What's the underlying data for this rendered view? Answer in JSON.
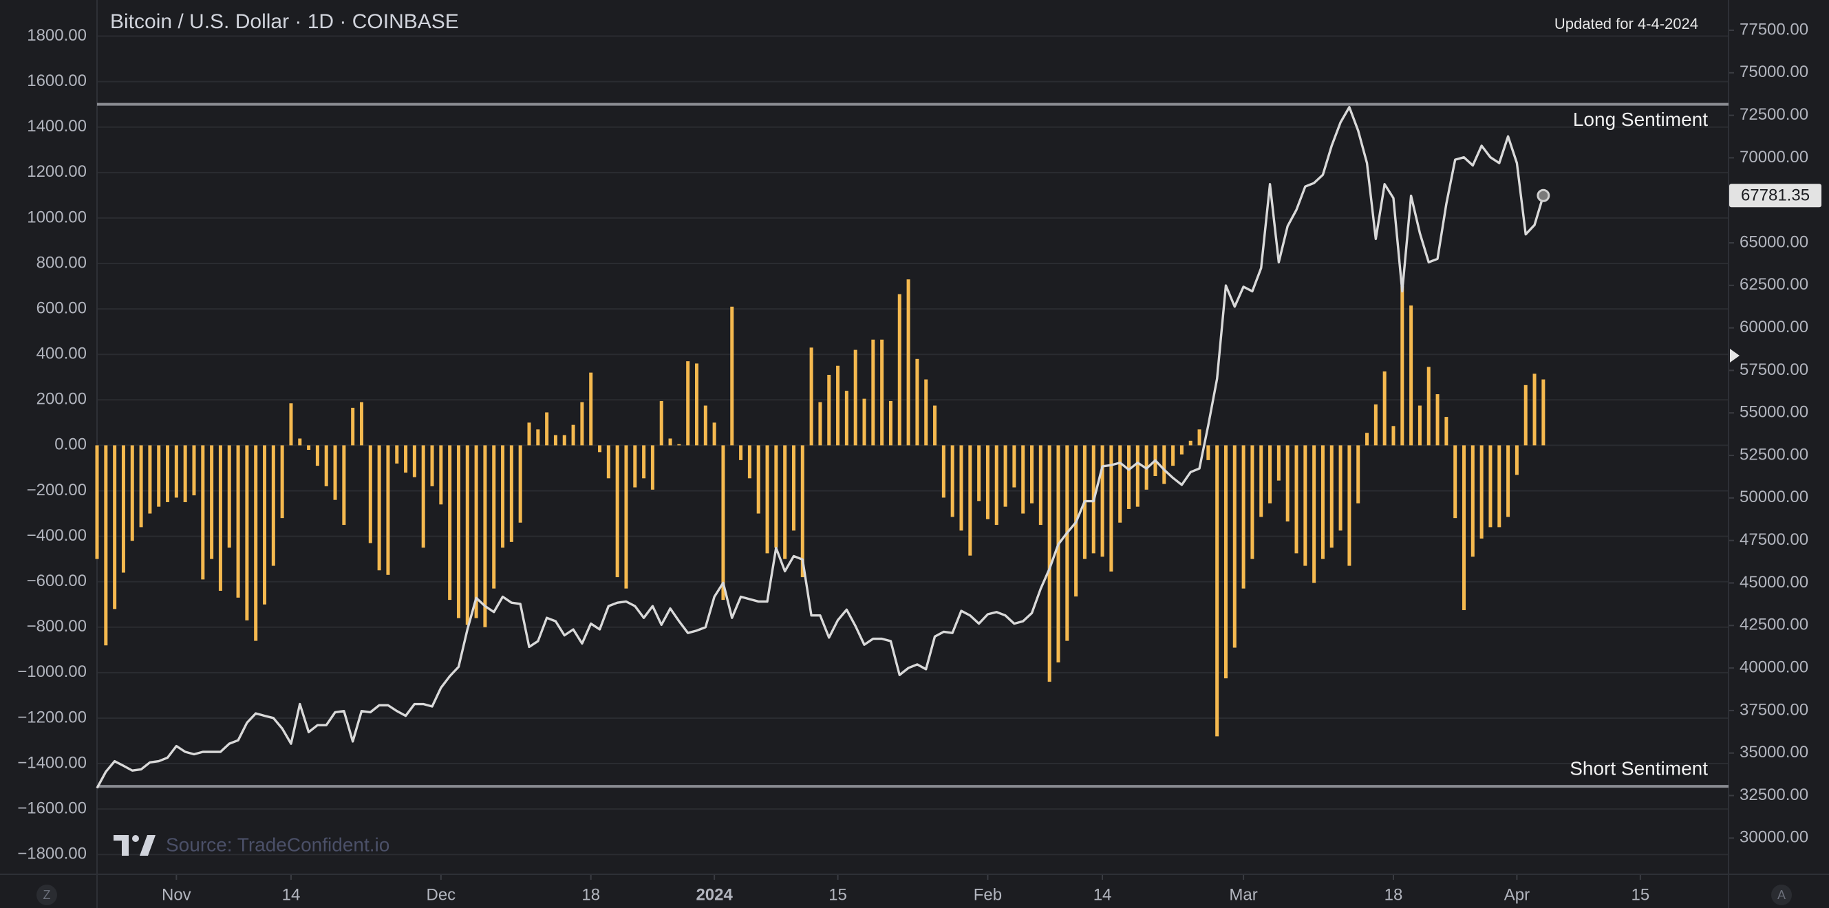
{
  "chart_data": {
    "type": "combo",
    "title": "Bitcoin / U.S. Dollar · 1D · COINBASE",
    "subtitle": "Updated for 4-4-2024",
    "source": "Source: TradeConfident.io",
    "buttons": [
      "Z",
      "A"
    ],
    "grid": true,
    "x": [
      "2023-10-23",
      "2023-10-24",
      "2023-10-25",
      "2023-10-26",
      "2023-10-27",
      "2023-10-28",
      "2023-10-29",
      "2023-10-30",
      "2023-10-31",
      "2023-11-01",
      "2023-11-02",
      "2023-11-03",
      "2023-11-04",
      "2023-11-05",
      "2023-11-06",
      "2023-11-07",
      "2023-11-08",
      "2023-11-09",
      "2023-11-10",
      "2023-11-11",
      "2023-11-12",
      "2023-11-13",
      "2023-11-14",
      "2023-11-15",
      "2023-11-16",
      "2023-11-17",
      "2023-11-18",
      "2023-11-19",
      "2023-11-20",
      "2023-11-21",
      "2023-11-22",
      "2023-11-23",
      "2023-11-24",
      "2023-11-25",
      "2023-11-26",
      "2023-11-27",
      "2023-11-28",
      "2023-11-29",
      "2023-11-30",
      "2023-12-01",
      "2023-12-02",
      "2023-12-03",
      "2023-12-04",
      "2023-12-05",
      "2023-12-06",
      "2023-12-07",
      "2023-12-08",
      "2023-12-09",
      "2023-12-10",
      "2023-12-11",
      "2023-12-12",
      "2023-12-13",
      "2023-12-14",
      "2023-12-15",
      "2023-12-16",
      "2023-12-17",
      "2023-12-18",
      "2023-12-19",
      "2023-12-20",
      "2023-12-21",
      "2023-12-22",
      "2023-12-23",
      "2023-12-24",
      "2023-12-25",
      "2023-12-26",
      "2023-12-27",
      "2023-12-28",
      "2023-12-29",
      "2023-12-30",
      "2023-12-31",
      "2024-01-01",
      "2024-01-02",
      "2024-01-03",
      "2024-01-04",
      "2024-01-05",
      "2024-01-06",
      "2024-01-07",
      "2024-01-08",
      "2024-01-09",
      "2024-01-10",
      "2024-01-11",
      "2024-01-12",
      "2024-01-13",
      "2024-01-14",
      "2024-01-15",
      "2024-01-16",
      "2024-01-17",
      "2024-01-18",
      "2024-01-19",
      "2024-01-20",
      "2024-01-21",
      "2024-01-22",
      "2024-01-23",
      "2024-01-24",
      "2024-01-25",
      "2024-01-26",
      "2024-01-27",
      "2024-01-28",
      "2024-01-29",
      "2024-01-30",
      "2024-01-31",
      "2024-02-01",
      "2024-02-02",
      "2024-02-03",
      "2024-02-04",
      "2024-02-05",
      "2024-02-06",
      "2024-02-07",
      "2024-02-08",
      "2024-02-09",
      "2024-02-10",
      "2024-02-11",
      "2024-02-12",
      "2024-02-13",
      "2024-02-14",
      "2024-02-15",
      "2024-02-16",
      "2024-02-17",
      "2024-02-18",
      "2024-02-19",
      "2024-02-20",
      "2024-02-21",
      "2024-02-22",
      "2024-02-23",
      "2024-02-24",
      "2024-02-25",
      "2024-02-26",
      "2024-02-27",
      "2024-02-28",
      "2024-02-29",
      "2024-03-01",
      "2024-03-02",
      "2024-03-03",
      "2024-03-04",
      "2024-03-05",
      "2024-03-06",
      "2024-03-07",
      "2024-03-08",
      "2024-03-09",
      "2024-03-10",
      "2024-03-11",
      "2024-03-12",
      "2024-03-13",
      "2024-03-14",
      "2024-03-15",
      "2024-03-16",
      "2024-03-17",
      "2024-03-18",
      "2024-03-19",
      "2024-03-20",
      "2024-03-21",
      "2024-03-22",
      "2024-03-23",
      "2024-03-24",
      "2024-03-25",
      "2024-03-26",
      "2024-03-27",
      "2024-03-28",
      "2024-03-29",
      "2024-03-30",
      "2024-03-31",
      "2024-04-01",
      "2024-04-02",
      "2024-04-03",
      "2024-04-04"
    ],
    "xlim": [
      "2023-10-23",
      "2024-04-25"
    ],
    "xticks": [
      {
        "value": "2023-11-01",
        "label": "Nov"
      },
      {
        "value": "2023-11-14",
        "label": "14"
      },
      {
        "value": "2023-12-01",
        "label": "Dec"
      },
      {
        "value": "2023-12-18",
        "label": "18"
      },
      {
        "value": "2024-01-01",
        "label": "2024"
      },
      {
        "value": "2024-01-15",
        "label": "15"
      },
      {
        "value": "2024-02-01",
        "label": "Feb"
      },
      {
        "value": "2024-02-14",
        "label": "14"
      },
      {
        "value": "2024-03-01",
        "label": "Mar"
      },
      {
        "value": "2024-03-18",
        "label": "18"
      },
      {
        "value": "2024-04-01",
        "label": "Apr"
      },
      {
        "value": "2024-04-15",
        "label": "15"
      }
    ],
    "ylim": [
      -1887,
      1959
    ],
    "yticks": [
      {
        "value": 1800,
        "label": "1800.00"
      },
      {
        "value": 1600,
        "label": "1600.00"
      },
      {
        "value": 1400,
        "label": "1400.00"
      },
      {
        "value": 1200,
        "label": "1200.00"
      },
      {
        "value": 1000,
        "label": "1000.00"
      },
      {
        "value": 800,
        "label": "800.00"
      },
      {
        "value": 600,
        "label": "600.00"
      },
      {
        "value": 400,
        "label": "400.00"
      },
      {
        "value": 200,
        "label": "200.00"
      },
      {
        "value": 0,
        "label": "0.00"
      },
      {
        "value": -200,
        "label": "−200.00"
      },
      {
        "value": -400,
        "label": "−400.00"
      },
      {
        "value": -600,
        "label": "−600.00"
      },
      {
        "value": -800,
        "label": "−800.00"
      },
      {
        "value": -1000,
        "label": "−1000.00"
      },
      {
        "value": -1200,
        "label": "−1200.00"
      },
      {
        "value": -1400,
        "label": "−1400.00"
      },
      {
        "value": -1600,
        "label": "−1600.00"
      },
      {
        "value": -1800,
        "label": "−1800.00"
      }
    ],
    "y2lim": [
      27870,
      79280
    ],
    "y2ticks": [
      {
        "value": 77500,
        "label": "77500.00"
      },
      {
        "value": 75000,
        "label": "75000.00"
      },
      {
        "value": 72500,
        "label": "72500.00"
      },
      {
        "value": 70000,
        "label": "70000.00"
      },
      {
        "value": 67500,
        "label": "67500.00"
      },
      {
        "value": 65000,
        "label": "65000.00"
      },
      {
        "value": 62500,
        "label": "62500.00"
      },
      {
        "value": 60000,
        "label": "60000.00"
      },
      {
        "value": 57500,
        "label": "57500.00"
      },
      {
        "value": 55000,
        "label": "55000.00"
      },
      {
        "value": 52500,
        "label": "52500.00"
      },
      {
        "value": 50000,
        "label": "50000.00"
      },
      {
        "value": 47500,
        "label": "47500.00"
      },
      {
        "value": 45000,
        "label": "45000.00"
      },
      {
        "value": 42500,
        "label": "42500.00"
      },
      {
        "value": 40000,
        "label": "40000.00"
      },
      {
        "value": 37500,
        "label": "37500.00"
      },
      {
        "value": 35000,
        "label": "35000.00"
      },
      {
        "value": 32500,
        "label": "32500.00"
      },
      {
        "value": 30000,
        "label": "30000.00"
      }
    ],
    "reference_lines": [
      {
        "value": 1500,
        "label": "Long Sentiment"
      },
      {
        "value": -1500,
        "label": "Short Sentiment"
      }
    ],
    "series": [
      {
        "type": "bar",
        "color": "#f5b94f",
        "values": [
          -500,
          -880,
          -720,
          -560,
          -420,
          -360,
          -300,
          -270,
          -250,
          -230,
          -250,
          -220,
          -590,
          -500,
          -640,
          -450,
          -670,
          -770,
          -860,
          -700,
          -530,
          -320,
          185,
          30,
          -20,
          -90,
          -180,
          -240,
          -350,
          165,
          190,
          -430,
          -550,
          -570,
          -80,
          -120,
          -140,
          -450,
          -180,
          -260,
          -680,
          -760,
          -790,
          -760,
          -800,
          -630,
          -450,
          -425,
          -340,
          100,
          70,
          145,
          45,
          45,
          90,
          190,
          320,
          -30,
          -145,
          -580,
          -630,
          -185,
          -145,
          -195,
          195,
          30,
          5,
          370,
          360,
          175,
          100,
          -680,
          610,
          -65,
          -145,
          -300,
          -475,
          -450,
          -500,
          -375,
          -580,
          430,
          190,
          310,
          350,
          240,
          420,
          205,
          465,
          465,
          195,
          665,
          730,
          380,
          290,
          175,
          -230,
          -315,
          -375,
          -485,
          -245,
          -325,
          -350,
          -270,
          -185,
          -300,
          -255,
          -350,
          -1040,
          -955,
          -860,
          -665,
          -500,
          -475,
          -490,
          -555,
          -340,
          -280,
          -270,
          -195,
          -135,
          -170,
          -90,
          -40,
          20,
          70,
          -65,
          -1280,
          -1025,
          -890,
          -630,
          -500,
          -315,
          -255,
          -155,
          -335,
          -475,
          -530,
          -605,
          -500,
          -450,
          -375,
          -530,
          -255,
          55,
          180,
          325,
          85,
          700,
          615,
          175,
          345,
          225,
          125,
          -320,
          -725,
          -490,
          -410,
          -360,
          -360,
          -315,
          -130,
          265,
          315,
          290
        ]
      },
      {
        "type": "line",
        "axis": "y2",
        "color": "#d9d9d9",
        "values": [
          32940,
          33900,
          34520,
          34250,
          33970,
          34040,
          34450,
          34520,
          34730,
          35410,
          35070,
          34930,
          35070,
          35070,
          35070,
          35550,
          35750,
          36780,
          37330,
          37190,
          37060,
          36440,
          35550,
          37880,
          36230,
          36640,
          36640,
          37400,
          37470,
          35680,
          37470,
          37400,
          37810,
          37810,
          37470,
          37190,
          37880,
          37880,
          37740,
          38840,
          39520,
          40070,
          42270,
          44120,
          43640,
          43290,
          44190,
          43840,
          43770,
          41240,
          41580,
          42950,
          42750,
          41920,
          42270,
          41440,
          42610,
          42270,
          43640,
          43840,
          43910,
          43640,
          42950,
          43640,
          42540,
          43500,
          42750,
          42060,
          42200,
          42400,
          44190,
          45010,
          42950,
          44190,
          44050,
          43910,
          43910,
          47060,
          45690,
          46580,
          46380,
          43090,
          43090,
          41790,
          42810,
          43430,
          42470,
          41370,
          41720,
          41720,
          41580,
          39590,
          40000,
          40210,
          39930,
          41850,
          42130,
          42060,
          43360,
          43090,
          42610,
          43160,
          43290,
          43090,
          42610,
          42750,
          43230,
          44660,
          45830,
          47270,
          47950,
          48570,
          49810,
          49810,
          51860,
          51930,
          52070,
          51660,
          52070,
          51730,
          52210,
          51660,
          51180,
          50770,
          51520,
          51730,
          54260,
          57000,
          62490,
          61250,
          62420,
          62150,
          63520,
          68450,
          63860,
          65980,
          66940,
          68310,
          68520,
          69000,
          70710,
          72080,
          72980,
          71600,
          69690,
          65230,
          68450,
          67630,
          62150,
          67770,
          65570,
          63860,
          64060,
          67290,
          69890,
          70030,
          69550,
          70710,
          70030,
          69690,
          71260,
          69690,
          65500,
          66050,
          67781.35
        ]
      }
    ]
  }
}
